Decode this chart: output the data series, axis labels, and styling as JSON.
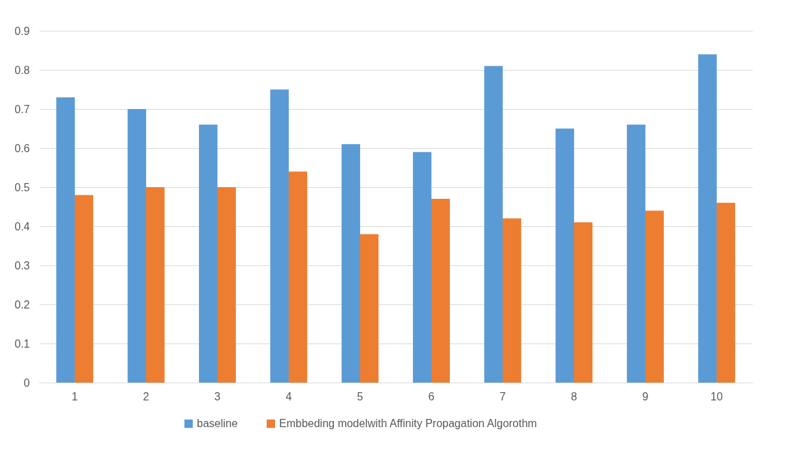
{
  "chart_data": {
    "type": "bar",
    "categories": [
      "1",
      "2",
      "3",
      "4",
      "5",
      "6",
      "7",
      "8",
      "9",
      "10"
    ],
    "series": [
      {
        "name": "baseline",
        "color": "#5b9bd5",
        "values": [
          0.73,
          0.7,
          0.66,
          0.75,
          0.61,
          0.59,
          0.81,
          0.65,
          0.66,
          0.84
        ]
      },
      {
        "name": "Embbeding modelwith Affinity Propagation Algorothm",
        "color": "#ed7d31",
        "values": [
          0.48,
          0.5,
          0.5,
          0.54,
          0.38,
          0.47,
          0.42,
          0.41,
          0.44,
          0.46
        ]
      }
    ],
    "ylim": [
      0,
      0.9
    ],
    "yticks": [
      0,
      0.1,
      0.2,
      0.3,
      0.4,
      0.5,
      0.6,
      0.7,
      0.8,
      0.9
    ],
    "grid": "y",
    "legend": "bottom"
  }
}
